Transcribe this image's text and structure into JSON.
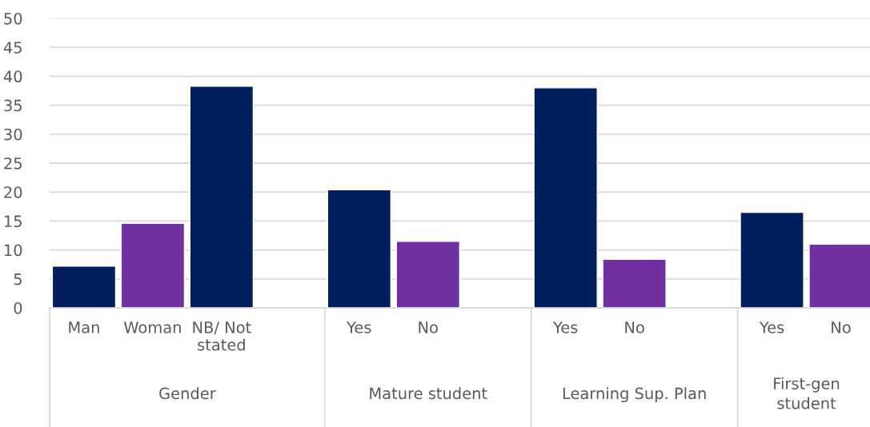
{
  "chart_data": {
    "type": "bar",
    "categories": [
      "Man",
      "Woman",
      "NB/ Not\nstated",
      null,
      "Yes",
      "No",
      null,
      "Yes",
      "No",
      null,
      "Yes",
      "No"
    ],
    "values": [
      7.2,
      14.6,
      38.3,
      null,
      20.4,
      11.5,
      null,
      38.0,
      8.4,
      null,
      16.5,
      11.0
    ],
    "colors": [
      "#001f5c",
      "#7030a0",
      "#001f5c",
      null,
      "#001f5c",
      "#7030a0",
      null,
      "#001f5c",
      "#7030a0",
      null,
      "#001f5c",
      "#7030a0"
    ],
    "annotations": [
      "Gender",
      "Mature student",
      "Learning Sup. Plan",
      "First-gen\nstudent"
    ],
    "ylim": [
      0,
      50
    ],
    "yticks": [
      0,
      5,
      10,
      15,
      20,
      25,
      30,
      35,
      40,
      45,
      50
    ],
    "grid": "y",
    "legend": false
  }
}
